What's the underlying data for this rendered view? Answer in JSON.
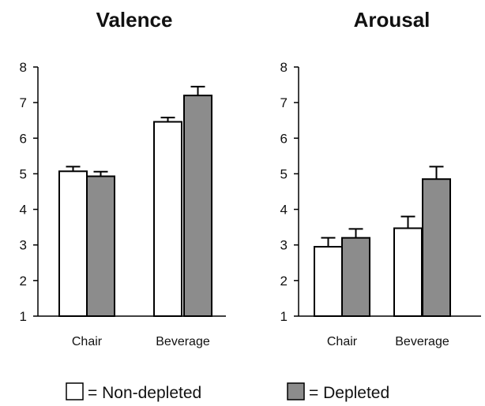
{
  "chart_data": [
    {
      "type": "bar",
      "title": "Valence",
      "categories": [
        "Chair",
        "Beverage"
      ],
      "ylim": [
        1,
        8
      ],
      "yticks": [
        "1",
        "2",
        "3",
        "4",
        "5",
        "6",
        "7",
        "8"
      ],
      "grid": false,
      "series": [
        {
          "name": "Non-depleted",
          "values": [
            5.07,
            6.46
          ],
          "errors": [
            0.13,
            0.12
          ]
        },
        {
          "name": "Depleted",
          "values": [
            4.93,
            7.2
          ],
          "errors": [
            0.13,
            0.25
          ]
        }
      ]
    },
    {
      "type": "bar",
      "title": "Arousal",
      "categories": [
        "Chair",
        "Beverage"
      ],
      "ylim": [
        1,
        8
      ],
      "yticks": [
        "1",
        "2",
        "3",
        "4",
        "5",
        "6",
        "7",
        "8"
      ],
      "grid": false,
      "series": [
        {
          "name": "Non-depleted",
          "values": [
            2.95,
            3.47
          ],
          "errors": [
            0.25,
            0.33
          ]
        },
        {
          "name": "Depleted",
          "values": [
            3.2,
            4.85
          ],
          "errors": [
            0.25,
            0.35
          ]
        }
      ]
    }
  ],
  "legend": {
    "placement": "bottom",
    "items": [
      {
        "label": "= Non-depleted",
        "color": "#ffffff"
      },
      {
        "label": "= Depleted",
        "color": "#8c8c8c"
      }
    ]
  },
  "colors": {
    "non_depleted": "#ffffff",
    "depleted": "#8c8c8c",
    "stroke": "#000000"
  }
}
